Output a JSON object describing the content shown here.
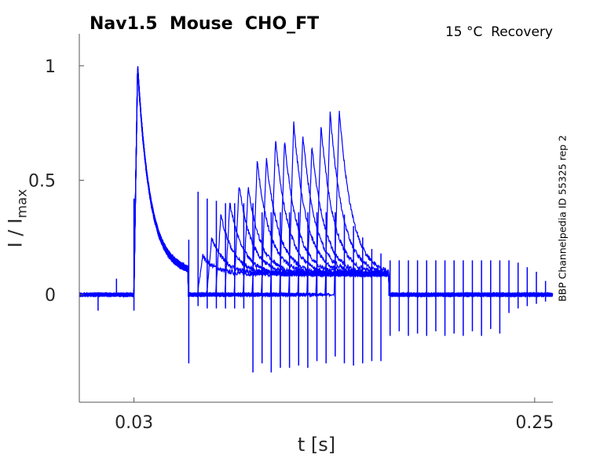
{
  "chart_data": {
    "type": "line",
    "title": "Nav1.5  Mouse  CHO_FT",
    "annotation": "15 °C  Recovery",
    "side_label": "BBP Channelpedia ID 55325 rep 2",
    "xlabel": "t [s]",
    "ylabel_main": "I / I",
    "ylabel_sub": "max",
    "xlim": [
      0.0,
      0.26
    ],
    "ylim": [
      -0.47,
      1.14
    ],
    "xticks": [
      0.03,
      0.25
    ],
    "xtick_labels": [
      "0.03",
      "0.25"
    ],
    "yticks": [
      0,
      0.5,
      1
    ],
    "ytick_labels": [
      "0",
      "0.5",
      "1"
    ],
    "grid": false,
    "line_color": "#0000ff",
    "prepulse": {
      "onset": 0.03,
      "peak_time": 0.032,
      "peak": 1.0,
      "end": 0.0597,
      "residual": 0.14
    },
    "test_pulses": {
      "onsets": [
        0.0649,
        0.0699,
        0.0749,
        0.0799,
        0.0849,
        0.0899,
        0.0949,
        0.0999,
        0.1049,
        0.1099,
        0.1149,
        0.1199,
        0.1249,
        0.1299,
        0.1349,
        0.1399
      ],
      "peaks": [
        0.17,
        0.25,
        0.35,
        0.4,
        0.48,
        0.47,
        0.58,
        0.59,
        0.68,
        0.67,
        0.75,
        0.7,
        0.65,
        0.74,
        0.8,
        0.81
      ],
      "end": 0.17,
      "plateau": 0.09
    },
    "artifacts": {
      "first": 0.0652,
      "spacing": 0.00502,
      "count": 39,
      "up": [
        0.45,
        0.42,
        0.41,
        0.4,
        0.4,
        0.4,
        0.4,
        0.36,
        0.36,
        0.36,
        0.36,
        0.36,
        0.36,
        0.36,
        0.36,
        0.36,
        0.35,
        0.3,
        0.25,
        0.2,
        0.18,
        0.15,
        0.15,
        0.15,
        0.15,
        0.15,
        0.15,
        0.15,
        0.15,
        0.15,
        0.15,
        0.15,
        0.15,
        0.15,
        0.15,
        0.14,
        0.12,
        0.1,
        0.06
      ],
      "down": [
        -0.05,
        -0.06,
        -0.06,
        -0.06,
        -0.06,
        -0.06,
        -0.34,
        -0.3,
        -0.34,
        -0.32,
        -0.32,
        -0.31,
        -0.32,
        -0.29,
        -0.3,
        -0.27,
        -0.3,
        -0.31,
        -0.3,
        -0.29,
        -0.29,
        -0.18,
        -0.16,
        -0.18,
        -0.17,
        -0.18,
        -0.16,
        -0.18,
        -0.17,
        -0.18,
        -0.16,
        -0.18,
        -0.15,
        -0.17,
        -0.08,
        -0.06,
        -0.05,
        -0.04,
        -0.03
      ]
    }
  }
}
